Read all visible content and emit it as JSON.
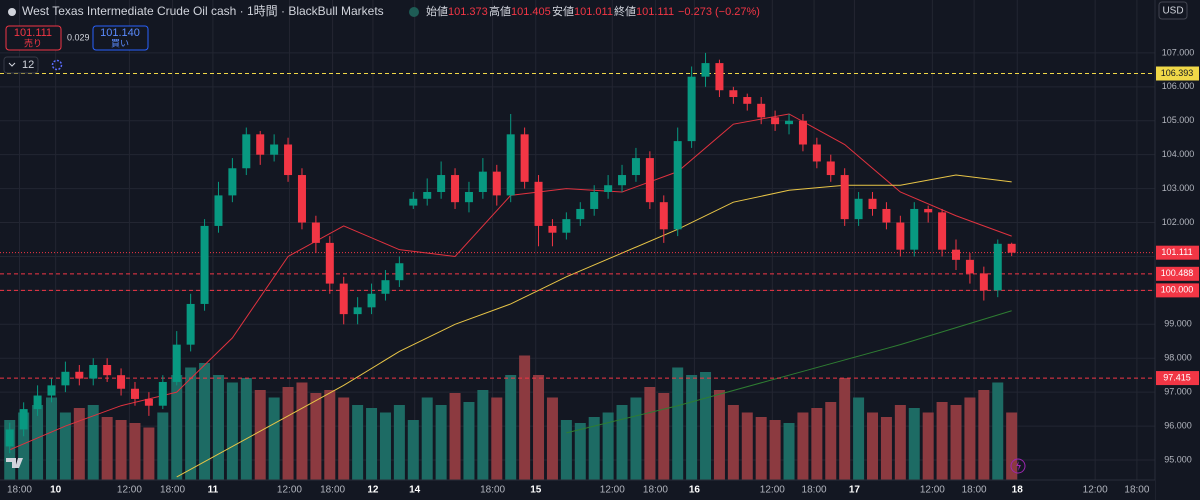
{
  "header": {
    "title": "West Texas Intermediate Crude Oil cash · 1時間 · BlackBull Markets",
    "open_label": "始値",
    "high_label": "高値",
    "low_label": "安値",
    "close_label": "終値",
    "change": "−0.273 (−0.27%)",
    "sell_price": "101.111",
    "sell_label": "売り",
    "spread": "0.029",
    "buy_price": "101.140",
    "buy_label": "買い",
    "indicator_count": "12",
    "currency": "USD"
  },
  "chart_data": {
    "type": "candlestick",
    "xlim": [
      -0.7,
      82.3
    ],
    "ylim": [
      94.41,
      108.56
    ],
    "volume_ylim": [
      0,
      100
    ],
    "up_color": "#089981",
    "down_color": "#f23645",
    "up_volume_color": "#1d6b64",
    "down_volume_color": "#8c3a40",
    "grid": true,
    "yticks": [
      {
        "value": 95,
        "label": "95.000"
      },
      {
        "value": 96,
        "label": "96.000"
      },
      {
        "value": 97,
        "label": "97.000"
      },
      {
        "value": 98,
        "label": "98.000"
      },
      {
        "value": 99,
        "label": "99.000"
      },
      {
        "value": 100,
        "label": "100.000"
      },
      {
        "value": 101,
        "label": "101.000"
      },
      {
        "value": 102,
        "label": "102.000"
      },
      {
        "value": 103,
        "label": "103.000"
      },
      {
        "value": 104,
        "label": "104.000"
      },
      {
        "value": 105,
        "label": "105.000"
      },
      {
        "value": 106,
        "label": "106.000"
      },
      {
        "value": 107,
        "label": "107.000"
      }
    ],
    "xticks": [
      {
        "value": 0.7,
        "label": "18:00"
      },
      {
        "value": 3.3,
        "label": "10"
      },
      {
        "value": 8.6,
        "label": "12:00"
      },
      {
        "value": 11.7,
        "label": "18:00"
      },
      {
        "value": 14.6,
        "label": "11"
      },
      {
        "value": 20.1,
        "label": "12:00"
      },
      {
        "value": 23.2,
        "label": "18:00"
      },
      {
        "value": 26.1,
        "label": "12"
      },
      {
        "value": 29.1,
        "label": "14"
      },
      {
        "value": 34.7,
        "label": "18:00"
      },
      {
        "value": 37.8,
        "label": "15"
      },
      {
        "value": 43.3,
        "label": "12:00"
      },
      {
        "value": 46.4,
        "label": "18:00"
      },
      {
        "value": 49.2,
        "label": "16"
      },
      {
        "value": 54.8,
        "label": "12:00"
      },
      {
        "value": 57.8,
        "label": "18:00"
      },
      {
        "value": 60.7,
        "label": "17"
      },
      {
        "value": 66.3,
        "label": "12:00"
      },
      {
        "value": 69.3,
        "label": "18:00"
      },
      {
        "value": 72.4,
        "label": "18"
      },
      {
        "value": 78,
        "label": "12:00"
      },
      {
        "value": 81,
        "label": "18:00"
      }
    ],
    "open": [
      95.4,
      95.9,
      96.5,
      96.9,
      97.2,
      97.6,
      97.4,
      97.8,
      97.5,
      97.1,
      96.8,
      96.6,
      97.3,
      98.4,
      99.6,
      101.9,
      102.8,
      103.6,
      104.6,
      104.0,
      104.3,
      103.4,
      102.0,
      101.4,
      100.2,
      99.3,
      99.5,
      99.9,
      100.3,
      102.5,
      102.7,
      102.9,
      103.4,
      102.6,
      102.9,
      103.5,
      102.8,
      104.6,
      103.2,
      101.9,
      101.7,
      102.1,
      102.4,
      102.9,
      103.1,
      103.4,
      103.9,
      102.6,
      101.8,
      104.4,
      106.3,
      106.7,
      105.9,
      105.7,
      105.5,
      105.1,
      104.9,
      105.0,
      104.3,
      103.8,
      103.4,
      102.1,
      102.7,
      102.4,
      102.0,
      101.2,
      102.4,
      102.3,
      101.2,
      100.9,
      100.5,
      100.0,
      101.373
    ],
    "high": [
      96.1,
      96.7,
      97.2,
      97.4,
      97.9,
      97.8,
      98.0,
      98.0,
      97.7,
      97.3,
      97.0,
      97.5,
      98.8,
      99.9,
      102.1,
      103.2,
      103.9,
      104.8,
      104.7,
      104.6,
      104.5,
      103.6,
      102.2,
      101.6,
      100.4,
      99.8,
      100.2,
      100.6,
      101.0,
      102.9,
      103.3,
      103.8,
      103.6,
      103.2,
      103.9,
      103.7,
      105.2,
      104.8,
      103.4,
      102.1,
      102.3,
      102.6,
      103.1,
      103.4,
      103.7,
      104.2,
      104.1,
      102.8,
      104.8,
      106.6,
      107.0,
      106.8,
      106.0,
      105.8,
      105.7,
      105.3,
      105.2,
      105.2,
      104.5,
      104.0,
      103.6,
      102.9,
      102.9,
      102.6,
      102.2,
      102.6,
      102.5,
      102.4,
      101.5,
      101.1,
      100.7,
      101.5,
      101.405
    ],
    "low": [
      95.2,
      95.7,
      96.3,
      96.7,
      97.0,
      97.2,
      97.2,
      97.3,
      96.9,
      96.6,
      96.3,
      96.5,
      97.2,
      98.2,
      99.4,
      101.7,
      102.6,
      103.4,
      103.7,
      103.8,
      103.2,
      101.8,
      101.1,
      99.9,
      99.0,
      99.0,
      99.3,
      99.7,
      100.1,
      102.4,
      102.5,
      102.7,
      102.4,
      102.3,
      102.7,
      102.5,
      102.6,
      103.0,
      101.3,
      101.3,
      101.5,
      101.9,
      102.2,
      102.7,
      102.9,
      103.2,
      102.4,
      101.4,
      101.6,
      104.2,
      106.0,
      105.7,
      105.5,
      105.3,
      104.9,
      104.7,
      104.6,
      104.1,
      103.6,
      103.2,
      101.9,
      101.9,
      102.2,
      101.8,
      101.0,
      101.0,
      102.0,
      101.0,
      100.6,
      100.2,
      99.7,
      99.8,
      101.011
    ],
    "close": [
      95.9,
      96.5,
      96.9,
      97.2,
      97.6,
      97.4,
      97.8,
      97.5,
      97.1,
      96.8,
      96.6,
      97.3,
      98.4,
      99.6,
      101.9,
      102.8,
      103.6,
      104.6,
      104.0,
      104.3,
      103.4,
      102.0,
      101.4,
      100.2,
      99.3,
      99.5,
      99.9,
      100.3,
      100.8,
      102.7,
      102.9,
      103.4,
      102.6,
      102.9,
      103.5,
      102.8,
      104.6,
      103.2,
      101.9,
      101.7,
      102.1,
      102.4,
      102.9,
      103.1,
      103.4,
      103.9,
      102.6,
      101.8,
      104.4,
      106.3,
      106.7,
      105.9,
      105.7,
      105.5,
      105.1,
      104.9,
      105.0,
      104.3,
      103.8,
      103.4,
      102.1,
      102.7,
      102.4,
      102.0,
      101.2,
      102.4,
      102.3,
      101.2,
      100.9,
      100.5,
      100.0,
      101.373,
      101.111
    ],
    "volume": [
      40,
      45,
      50,
      55,
      45,
      48,
      50,
      42,
      40,
      38,
      35,
      45,
      70,
      75,
      78,
      70,
      65,
      68,
      60,
      55,
      62,
      65,
      58,
      60,
      55,
      50,
      48,
      45,
      50,
      40,
      55,
      50,
      58,
      52,
      60,
      55,
      70,
      83,
      70,
      55,
      40,
      38,
      42,
      45,
      50,
      55,
      62,
      58,
      75,
      70,
      72,
      60,
      50,
      45,
      42,
      40,
      38,
      45,
      48,
      52,
      68,
      55,
      45,
      42,
      50,
      48,
      45,
      52,
      50,
      55,
      60,
      65,
      45
    ],
    "series": [
      {
        "color": "#e0323f",
        "x": [
          0,
          4,
          8,
          12,
          16,
          20,
          24,
          28,
          32,
          36,
          40,
          44,
          48,
          52,
          56,
          60,
          64,
          68,
          72
        ],
        "values": [
          95.3,
          96.0,
          96.6,
          97.0,
          98.6,
          101.0,
          101.9,
          101.2,
          101.0,
          102.8,
          103.0,
          102.9,
          103.5,
          104.9,
          105.2,
          104.3,
          102.9,
          102.2,
          101.6
        ]
      },
      {
        "color": "#e8c547",
        "x": [
          12,
          16,
          20,
          24,
          28,
          32,
          36,
          40,
          44,
          48,
          52,
          56,
          60,
          64,
          68,
          72
        ],
        "values": [
          94.5,
          95.4,
          96.3,
          97.2,
          98.2,
          99.0,
          99.6,
          100.4,
          101.1,
          101.8,
          102.6,
          102.95,
          103.1,
          103.1,
          103.4,
          103.2
        ]
      },
      {
        "color": "#2e7d32",
        "x": [
          40,
          48,
          56,
          64,
          72
        ],
        "values": [
          95.8,
          96.6,
          97.5,
          98.4,
          99.4
        ]
      }
    ],
    "hlines": [
      {
        "value": 106.393,
        "label": "106.393",
        "color": "#f0d848",
        "text_color": "#131722"
      },
      {
        "value": 100.488,
        "label": "100.488",
        "color": "#f23645",
        "text_color": "#ffffff"
      },
      {
        "value": 100,
        "label": "100.000",
        "color": "#f23645",
        "text_color": "#ffffff"
      },
      {
        "value": 97.415,
        "label": "97.415",
        "color": "#f23645",
        "text_color": "#ffffff"
      }
    ]
  }
}
